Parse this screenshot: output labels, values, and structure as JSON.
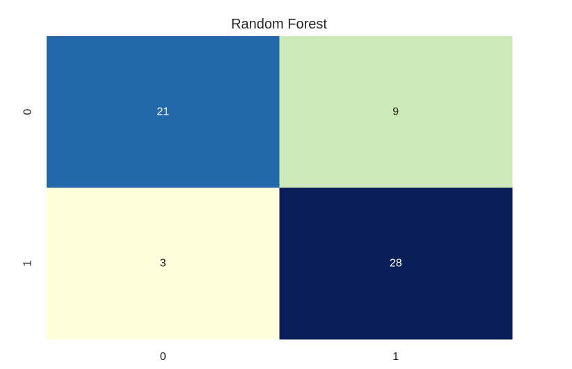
{
  "chart_data": {
    "type": "heatmap",
    "title": "Random Forest",
    "xlabel": "",
    "ylabel": "",
    "x_categories": [
      "0",
      "1"
    ],
    "y_categories": [
      "0",
      "1"
    ],
    "values": [
      [
        21,
        9
      ],
      [
        3,
        28
      ]
    ],
    "colormap": "YlGnBu",
    "colorbar": false,
    "grid": false,
    "cell_colors": [
      [
        "#2369a9",
        "#cce9b8"
      ],
      [
        "#fefedb",
        "#0a1f57"
      ]
    ],
    "annotation_colors": [
      [
        "#ffffff",
        "#262626"
      ],
      [
        "#262626",
        "#ffffff"
      ]
    ]
  }
}
